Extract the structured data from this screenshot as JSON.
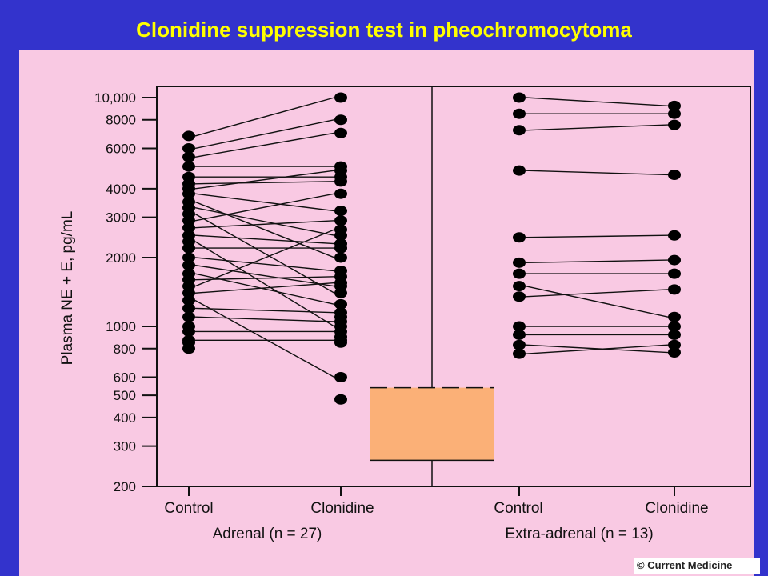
{
  "slide": {
    "title": "Clonidine suppression test in pheochromocytoma",
    "credit": "© Current Medicine"
  },
  "chart_data": {
    "type": "scatter",
    "ylabel": "Plasma NE + E, pg/mL",
    "y_scale": "log",
    "ylim": [
      200,
      10000
    ],
    "y_ticks": [
      {
        "value": 10000,
        "label": "10,000"
      },
      {
        "value": 8000,
        "label": "8000"
      },
      {
        "value": 6000,
        "label": "6000"
      },
      {
        "value": 4000,
        "label": "4000"
      },
      {
        "value": 3000,
        "label": "3000"
      },
      {
        "value": 2000,
        "label": "2000"
      },
      {
        "value": 1000,
        "label": "1000"
      },
      {
        "value": 800,
        "label": "800"
      },
      {
        "value": 600,
        "label": "600"
      },
      {
        "value": 500,
        "label": "500"
      },
      {
        "value": 400,
        "label": "400"
      },
      {
        "value": 300,
        "label": "300"
      },
      {
        "value": 200,
        "label": "200"
      }
    ],
    "x_labels": [
      "Control",
      "Clonidine",
      "Control",
      "Clonidine"
    ],
    "groups": [
      {
        "label": "Adrenal (n = 27)",
        "pairs": [
          [
            6800,
            10000
          ],
          [
            6000,
            8000
          ],
          [
            5500,
            7000
          ],
          [
            5000,
            5000
          ],
          [
            4500,
            4500
          ],
          [
            4200,
            4300
          ],
          [
            4000,
            4800
          ],
          [
            3800,
            3200
          ],
          [
            3500,
            2000
          ],
          [
            3300,
            2500
          ],
          [
            3100,
            1400
          ],
          [
            2900,
            3800
          ],
          [
            2700,
            2900
          ],
          [
            2500,
            2300
          ],
          [
            2350,
            1000
          ],
          [
            2200,
            2200
          ],
          [
            2000,
            1750
          ],
          [
            1850,
            1500
          ],
          [
            1700,
            1250
          ],
          [
            1600,
            1650
          ],
          [
            1500,
            2650
          ],
          [
            1400,
            1550
          ],
          [
            1300,
            600
          ],
          [
            1200,
            1150
          ],
          [
            1100,
            1050
          ],
          [
            950,
            950
          ],
          [
            870,
            870
          ]
        ],
        "extra_control": [
          1000,
          850,
          800
        ],
        "extra_clonidine": [
          1100,
          900,
          850,
          480
        ]
      },
      {
        "label": "Extra-adrenal (n = 13)",
        "pairs": [
          [
            10000,
            9200
          ],
          [
            8500,
            8500
          ],
          [
            7200,
            7600
          ],
          [
            4800,
            4600
          ],
          [
            2450,
            2500
          ],
          [
            1900,
            1950
          ],
          [
            1700,
            1700
          ],
          [
            1500,
            1100
          ],
          [
            1350,
            1450
          ],
          [
            1000,
            1000
          ],
          [
            920,
            920
          ],
          [
            830,
            770
          ],
          [
            760,
            830
          ]
        ]
      }
    ],
    "normal_range": {
      "low": 260,
      "high": 540,
      "color": "#fbb077"
    }
  }
}
